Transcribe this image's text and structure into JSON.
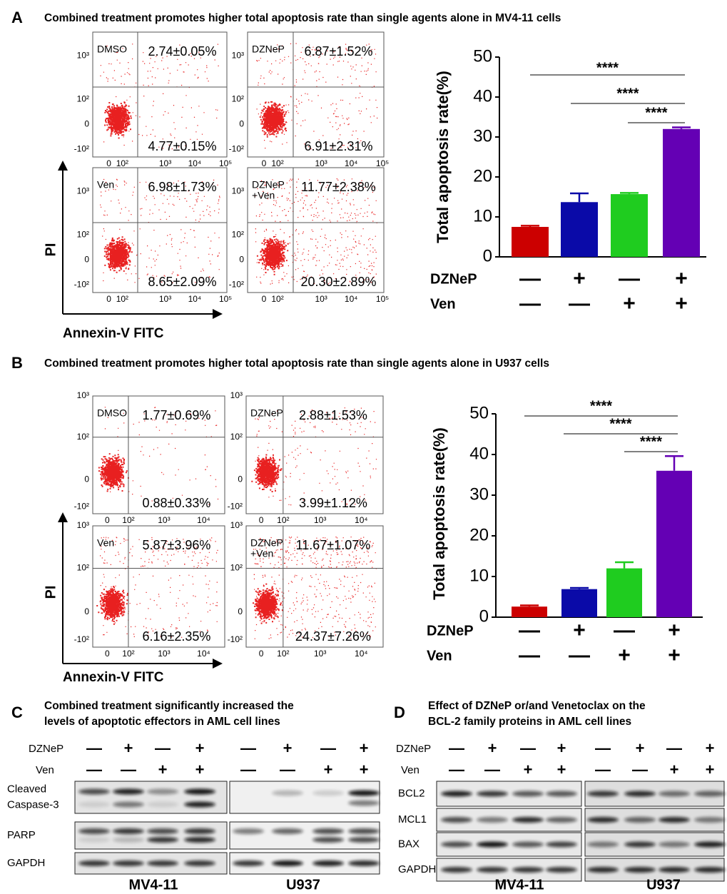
{
  "panels": {
    "A": {
      "label": "A",
      "title": "Combined treatment promotes higher total apoptosis rate than single agents alone in MV4-11 cells",
      "flow": {
        "x_axis_label": "Annexin-V FITC",
        "y_axis_label": "PI",
        "xticks": [
          "0",
          "10²",
          "10³",
          "10⁴",
          "10⁵"
        ],
        "yticks": [
          "10³",
          "10²",
          "0",
          "-10²"
        ],
        "plots": [
          {
            "condition": [
              "DMSO"
            ],
            "upper_right": "2.74±0.05%",
            "lower_right": "4.77±0.15%"
          },
          {
            "condition": [
              "DZNeP"
            ],
            "upper_right": "6.87±1.52%",
            "lower_right": "6.91±2.31%"
          },
          {
            "condition": [
              "Ven"
            ],
            "upper_right": "6.98±1.73%",
            "lower_right": "8.65±2.09%"
          },
          {
            "condition": [
              "DZNeP",
              "+Ven"
            ],
            "upper_right": "11.77±2.38%",
            "lower_right": "20.30±2.89%"
          }
        ]
      }
    },
    "B": {
      "label": "B",
      "title": "Combined treatment promotes higher total apoptosis rate than single agents alone in U937 cells",
      "flow": {
        "x_axis_label": "Annexin-V FITC",
        "y_axis_label": "PI",
        "xticks": [
          "0",
          "10²",
          "10³",
          "10⁴"
        ],
        "yticks": [
          "10³",
          "10²",
          "0",
          "-10²"
        ],
        "plots": [
          {
            "condition": [
              "DMSO"
            ],
            "upper_right": "1.77±0.69%",
            "lower_right": "0.88±0.33%"
          },
          {
            "condition": [
              "DZNeP"
            ],
            "upper_right": "2.88±1.53%",
            "lower_right": "3.99±1.12%"
          },
          {
            "condition": [
              "Ven"
            ],
            "upper_right": "5.87±3.96%",
            "lower_right": "6.16±2.35%"
          },
          {
            "condition": [
              "DZNeP",
              "+Ven"
            ],
            "upper_right": "11.67±1.07%",
            "lower_right": "24.37±7.26%"
          }
        ]
      }
    },
    "C": {
      "label": "C",
      "title": [
        "Combined treatment significantly increased the",
        "levels of apoptotic effectors in AML cell lines"
      ],
      "treatments": [
        {
          "name": "DZNeP",
          "signs": [
            "—",
            "+",
            "—",
            "+"
          ]
        },
        {
          "name": "Ven",
          "signs": [
            "—",
            "—",
            "+",
            "+"
          ]
        }
      ],
      "rows": [
        [
          "Cleaved",
          "Caspase-3"
        ],
        [
          "PARP"
        ],
        [
          "GAPDH"
        ]
      ],
      "cell_lines": [
        "MV4-11",
        "U937"
      ]
    },
    "D": {
      "label": "D",
      "title": [
        "Effect of DZNeP or/and Venetoclax on the",
        "BCL-2 family proteins in AML cell lines"
      ],
      "treatments": [
        {
          "name": "DZNeP",
          "signs": [
            "—",
            "+",
            "—",
            "+"
          ]
        },
        {
          "name": "Ven",
          "signs": [
            "—",
            "—",
            "+",
            "+"
          ]
        }
      ],
      "rows": [
        [
          "BCL2"
        ],
        [
          "MCL1"
        ],
        [
          "BAX"
        ],
        [
          "GAPDH"
        ]
      ],
      "cell_lines": [
        "MV4-11",
        "U937"
      ]
    }
  },
  "chart_data": [
    {
      "type": "bar",
      "ylabel": "Total apoptosis rate(%)",
      "categories": [
        null,
        null,
        null,
        null
      ],
      "values": [
        7.5,
        13.7,
        15.7,
        32.0
      ],
      "errors": [
        0.3,
        2.2,
        0.3,
        0.4
      ],
      "colors": [
        "#cc0000",
        "#0a0aa8",
        "#1fcc1f",
        "#6400b4"
      ],
      "ylim": [
        0,
        50
      ],
      "yticks": [
        0,
        10,
        20,
        30,
        40,
        50
      ],
      "significance": [
        "****",
        "****",
        "****"
      ],
      "conditions": [
        {
          "name": "DZNeP",
          "signs": [
            "—",
            "+",
            "—",
            "+"
          ]
        },
        {
          "name": "Ven",
          "signs": [
            "—",
            "—",
            "+",
            "+"
          ]
        }
      ]
    },
    {
      "type": "bar",
      "ylabel": "Total apoptosis rate(%)",
      "categories": [
        null,
        null,
        null,
        null
      ],
      "values": [
        2.6,
        6.9,
        12.0,
        36.0
      ],
      "errors": [
        0.3,
        0.3,
        1.5,
        3.6
      ],
      "colors": [
        "#cc0000",
        "#0a0aa8",
        "#1fcc1f",
        "#6400b4"
      ],
      "ylim": [
        0,
        50
      ],
      "yticks": [
        0,
        10,
        20,
        30,
        40,
        50
      ],
      "significance": [
        "****",
        "****",
        "****"
      ],
      "conditions": [
        {
          "name": "DZNeP",
          "signs": [
            "—",
            "+",
            "—",
            "+"
          ]
        },
        {
          "name": "Ven",
          "signs": [
            "—",
            "—",
            "+",
            "+"
          ]
        }
      ]
    }
  ]
}
